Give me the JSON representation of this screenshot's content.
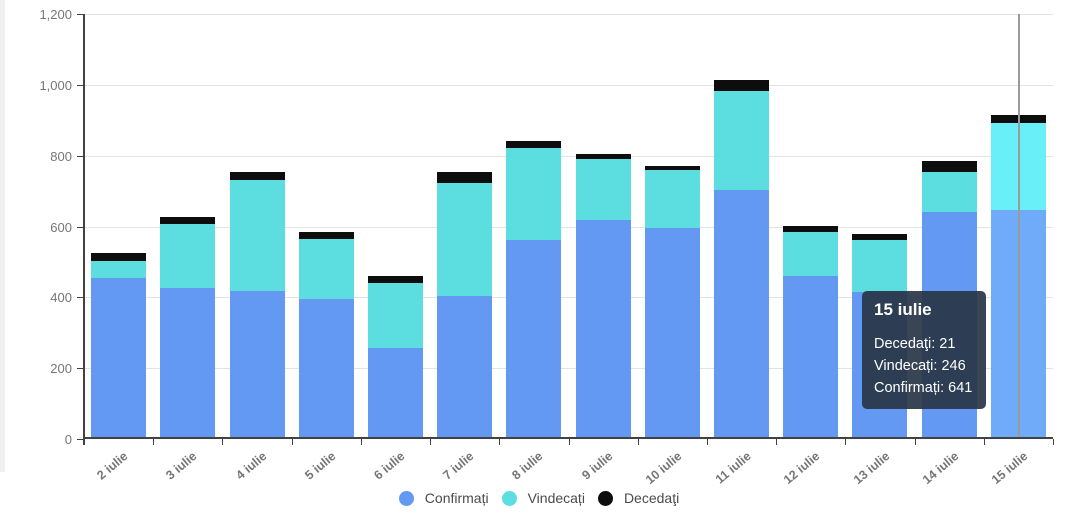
{
  "chart_data": {
    "type": "bar",
    "stacked": true,
    "title": "",
    "xlabel": "",
    "ylabel": "",
    "grid": true,
    "legend_position": "bottom",
    "ylim": [
      0,
      1200
    ],
    "y_ticks": [
      "0",
      "200",
      "400",
      "600",
      "800",
      "1,000",
      "1,200"
    ],
    "categories": [
      "2 iulie",
      "3 iulie",
      "4 iulie",
      "5 iulie",
      "6 iulie",
      "7 iulie",
      "8 iulie",
      "9 iulie",
      "10 iulie",
      "11 iulie",
      "12 iulie",
      "13 iulie",
      "14 iulie",
      "15 iulie"
    ],
    "series": [
      {
        "name": "Confirmați",
        "color": "#6499f3",
        "hover_color": "#6fabf9",
        "values": [
          450,
          420,
          413,
          391,
          250,
          397,
          555,
          614,
          591,
          698,
          456,
          410,
          635,
          641
        ]
      },
      {
        "name": "Vindecați",
        "color": "#5cdde0",
        "hover_color": "#68eff7",
        "values": [
          47,
          182,
          313,
          168,
          184,
          320,
          261,
          171,
          163,
          279,
          123,
          146,
          113,
          246
        ]
      },
      {
        "name": "Decedaţi",
        "color": "#0d0d0d",
        "hover_color": "#0d0d0d",
        "values": [
          22,
          20,
          22,
          21,
          22,
          31,
          19,
          14,
          11,
          30,
          17,
          18,
          30,
          21
        ]
      }
    ],
    "hovered_category_index": 13
  },
  "legend": {
    "items": [
      {
        "label": "Confirmați",
        "color": "#6499f3"
      },
      {
        "label": "Vindecați",
        "color": "#5cdde0"
      },
      {
        "label": "Decedaţi",
        "color": "#0d0d0d"
      }
    ]
  },
  "tooltip": {
    "title": "15 iulie",
    "lines": [
      {
        "label": "Decedaţi",
        "value": "21"
      },
      {
        "label": "Vindecați",
        "value": "246"
      },
      {
        "label": "Confirmați",
        "value": "641"
      }
    ]
  },
  "colors": {
    "gridline": "#e3e3e3",
    "axis": "#424242",
    "tick_text": "#767676",
    "crosshair": "#9b9b9b",
    "tooltip_bg": "#28374f"
  }
}
